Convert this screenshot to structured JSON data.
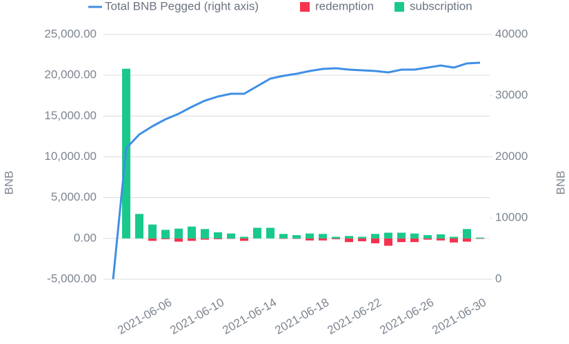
{
  "chart_data": {
    "type": "bar",
    "y_label": "BNB",
    "y2_label": "BNB",
    "categories": [
      null,
      null,
      null,
      null,
      "2021-06-06",
      null,
      null,
      null,
      "2021-06-10",
      null,
      null,
      null,
      "2021-06-14",
      null,
      null,
      null,
      "2021-06-18",
      null,
      null,
      null,
      "2021-06-22",
      null,
      null,
      null,
      "2021-06-26",
      null,
      null,
      null,
      "2021-06-30"
    ],
    "series": [
      {
        "name": "Total BNB Pegged (right axis)",
        "type": "line",
        "axis": "y2",
        "color": "#3f8fe6",
        "values": [
          0,
          21400,
          23660,
          25000,
          26140,
          27040,
          28170,
          29180,
          29860,
          30310,
          30310,
          31550,
          32790,
          33240,
          33580,
          34030,
          34370,
          34480,
          34250,
          34140,
          34030,
          33800,
          34250,
          34250,
          34590,
          34930,
          34590,
          35270,
          35380
        ]
      },
      {
        "name": "redemption",
        "type": "bar",
        "color": "#f5334f",
        "values": [
          0,
          0,
          0,
          -300,
          -100,
          -400,
          -300,
          -150,
          -100,
          -50,
          -300,
          0,
          0,
          -50,
          -50,
          -250,
          -250,
          -100,
          -450,
          -350,
          -600,
          -900,
          -450,
          -450,
          -150,
          -250,
          -500,
          -400,
          -50
        ]
      },
      {
        "name": "subscription",
        "type": "bar",
        "color": "#19c98c",
        "values": [
          0,
          20800,
          3000,
          1700,
          1050,
          1200,
          1450,
          1150,
          750,
          600,
          200,
          1300,
          1300,
          550,
          400,
          600,
          550,
          200,
          300,
          200,
          550,
          700,
          700,
          600,
          400,
          500,
          200,
          1150,
          100
        ]
      }
    ],
    "ylim": [
      -5000,
      25000
    ],
    "yticks": [
      {
        "value": -5000,
        "label": "-5,000.00"
      },
      {
        "value": 0,
        "label": "0.00"
      },
      {
        "value": 5000,
        "label": "5,000.00"
      },
      {
        "value": 10000,
        "label": "10,000.00"
      },
      {
        "value": 15000,
        "label": "15,000.00"
      },
      {
        "value": 20000,
        "label": "20,000.00"
      },
      {
        "value": 25000,
        "label": "25,000.00"
      }
    ],
    "y2lim": [
      0,
      40000
    ],
    "y2ticks": [
      0,
      10000,
      20000,
      30000,
      40000
    ],
    "grid": true,
    "legend": "top"
  }
}
